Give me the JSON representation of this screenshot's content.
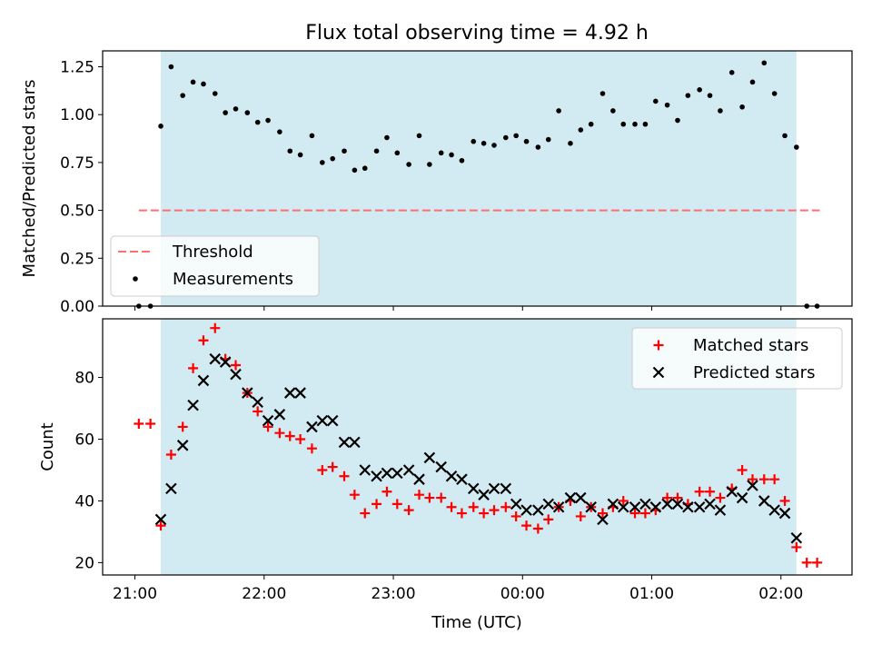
{
  "figure": {
    "title": "Flux total observing time = 4.92 h",
    "xlabel": "Time (UTC)",
    "shade_color": "#add8e6"
  },
  "chart_data": [
    {
      "type": "scatter",
      "title": "Flux total observing time = 4.92 h",
      "ylabel": "Matched/Predicted stars",
      "xlabel": "",
      "xlim": [
        -0.25,
        5.55
      ],
      "ylim": [
        0,
        1.333
      ],
      "yticks": [
        0.0,
        0.25,
        0.5,
        0.75,
        1.0,
        1.25
      ],
      "ytick_labels": [
        "0.00",
        "0.25",
        "0.50",
        "0.75",
        "1.00",
        "1.25"
      ],
      "shaded_x_range": [
        0.2,
        5.12
      ],
      "legend_position": "lower-left",
      "threshold": {
        "name": "Threshold",
        "y": 0.5,
        "x_range": [
          0.03,
          5.3
        ],
        "color": "#ff6f6f",
        "style": "dashed"
      },
      "series": [
        {
          "name": "Measurements",
          "color": "#000000",
          "marker": "dot",
          "x": [
            0.03,
            0.12,
            0.2,
            0.28,
            0.37,
            0.45,
            0.53,
            0.62,
            0.7,
            0.78,
            0.87,
            0.95,
            1.03,
            1.12,
            1.2,
            1.28,
            1.37,
            1.45,
            1.53,
            1.62,
            1.7,
            1.78,
            1.87,
            1.95,
            2.03,
            2.12,
            2.2,
            2.28,
            2.37,
            2.45,
            2.53,
            2.62,
            2.7,
            2.78,
            2.87,
            2.95,
            3.03,
            3.12,
            3.2,
            3.28,
            3.37,
            3.45,
            3.53,
            3.62,
            3.7,
            3.78,
            3.87,
            3.95,
            4.03,
            4.12,
            4.2,
            4.28,
            4.37,
            4.45,
            4.53,
            4.62,
            4.7,
            4.78,
            4.87,
            4.95,
            5.03,
            5.12,
            5.2,
            5.28
          ],
          "y": [
            0.0,
            0.0,
            0.94,
            1.25,
            1.1,
            1.17,
            1.16,
            1.11,
            1.01,
            1.03,
            1.01,
            0.96,
            0.97,
            0.91,
            0.81,
            0.79,
            0.89,
            0.75,
            0.77,
            0.81,
            0.71,
            0.72,
            0.81,
            0.88,
            0.8,
            0.74,
            0.89,
            0.74,
            0.8,
            0.79,
            0.76,
            0.86,
            0.85,
            0.84,
            0.88,
            0.89,
            0.86,
            0.83,
            0.87,
            1.02,
            0.85,
            0.92,
            0.95,
            1.11,
            1.02,
            0.95,
            0.95,
            0.95,
            1.07,
            1.05,
            0.97,
            1.1,
            1.13,
            1.1,
            1.02,
            1.22,
            1.04,
            1.17,
            1.27,
            1.11,
            0.89,
            0.83,
            0.0,
            0.0
          ]
        }
      ]
    },
    {
      "type": "scatter",
      "ylabel": "Count",
      "xlabel": "Time (UTC)",
      "xlim": [
        -0.25,
        5.55
      ],
      "ylim": [
        16,
        99
      ],
      "yticks": [
        20,
        40,
        60,
        80
      ],
      "xticks": [
        0,
        1,
        2,
        3,
        4,
        5
      ],
      "xtick_labels": [
        "21:00",
        "22:00",
        "23:00",
        "00:00",
        "01:00",
        "02:00"
      ],
      "shaded_x_range": [
        0.2,
        5.12
      ],
      "legend_position": "top-right",
      "series": [
        {
          "name": "Matched stars",
          "color": "#ff0000",
          "marker": "plus",
          "x": [
            0.03,
            0.12,
            0.2,
            0.28,
            0.37,
            0.45,
            0.53,
            0.62,
            0.7,
            0.78,
            0.87,
            0.95,
            1.03,
            1.12,
            1.2,
            1.28,
            1.37,
            1.45,
            1.53,
            1.62,
            1.7,
            1.78,
            1.87,
            1.95,
            2.03,
            2.12,
            2.2,
            2.28,
            2.37,
            2.45,
            2.53,
            2.62,
            2.7,
            2.78,
            2.87,
            2.95,
            3.03,
            3.12,
            3.2,
            3.28,
            3.37,
            3.45,
            3.53,
            3.62,
            3.7,
            3.78,
            3.87,
            3.95,
            4.03,
            4.12,
            4.2,
            4.28,
            4.37,
            4.45,
            4.53,
            4.62,
            4.7,
            4.78,
            4.87,
            4.95,
            5.03,
            5.12,
            5.2,
            5.28
          ],
          "y": [
            65,
            65,
            32,
            55,
            64,
            83,
            92,
            96,
            86,
            84,
            75,
            69,
            64,
            62,
            61,
            60,
            57,
            50,
            51,
            48,
            42,
            36,
            39,
            43,
            39,
            37,
            42,
            41,
            41,
            38,
            36,
            38,
            36,
            37,
            38,
            35,
            32,
            31,
            34,
            38,
            40,
            35,
            38,
            36,
            38,
            40,
            36,
            36,
            37,
            41,
            41,
            39,
            43,
            43,
            41,
            44,
            50,
            47,
            47,
            47,
            40,
            25,
            20,
            20
          ]
        },
        {
          "name": "Predicted stars",
          "color": "#000000",
          "marker": "x",
          "x": [
            0.2,
            0.28,
            0.37,
            0.45,
            0.53,
            0.62,
            0.7,
            0.78,
            0.87,
            0.95,
            1.03,
            1.12,
            1.2,
            1.28,
            1.37,
            1.45,
            1.53,
            1.62,
            1.7,
            1.78,
            1.87,
            1.95,
            2.03,
            2.12,
            2.2,
            2.28,
            2.37,
            2.45,
            2.53,
            2.62,
            2.7,
            2.78,
            2.87,
            2.95,
            3.03,
            3.12,
            3.2,
            3.28,
            3.37,
            3.45,
            3.53,
            3.62,
            3.7,
            3.78,
            3.87,
            3.95,
            4.03,
            4.12,
            4.2,
            4.28,
            4.37,
            4.45,
            4.53,
            4.62,
            4.7,
            4.78,
            4.87,
            4.95,
            5.03,
            5.12
          ],
          "y": [
            34,
            44,
            58,
            71,
            79,
            86,
            85,
            81,
            75,
            72,
            66,
            68,
            75,
            75,
            64,
            66,
            66,
            59,
            59,
            50,
            48,
            49,
            49,
            50,
            47,
            54,
            51,
            48,
            47,
            44,
            42,
            44,
            44,
            39,
            37,
            37,
            39,
            38,
            41,
            41,
            38,
            34,
            39,
            38,
            38,
            39,
            38,
            39,
            39,
            38,
            38,
            39,
            37,
            43,
            41,
            45,
            40,
            37,
            36,
            28
          ]
        }
      ]
    }
  ]
}
